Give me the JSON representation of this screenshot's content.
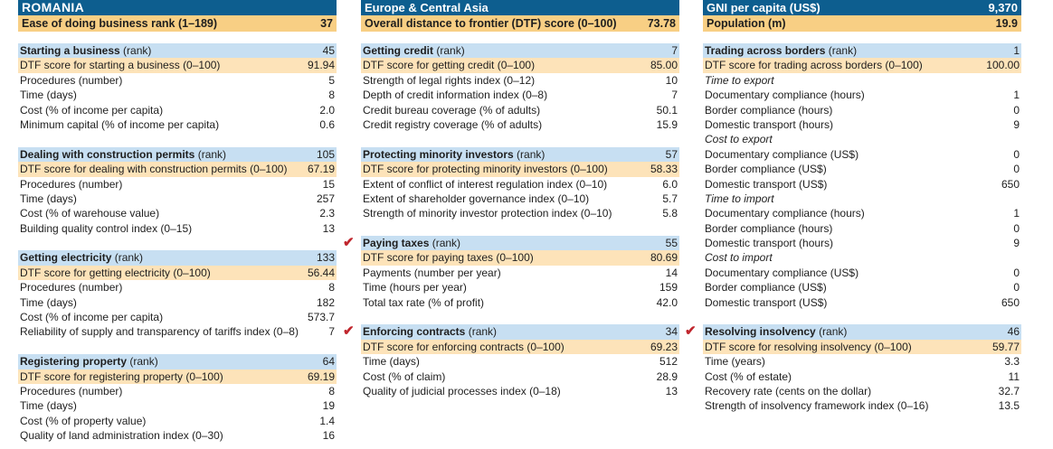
{
  "header": {
    "cells": [
      {
        "t1_label": "ROMANIA",
        "t1_value": "",
        "t2_label": "Ease of doing business rank (1–189)",
        "t2_value": "37"
      },
      {
        "t1_label": "Europe & Central Asia",
        "t1_value": "",
        "t2_label": "Overall distance to frontier (DTF) score (0–100)",
        "t2_value": "73.78"
      },
      {
        "t1_label": "GNI per capita (US$)",
        "t1_value": "9,370",
        "t2_label": "Population (m)",
        "t2_value": "19.9"
      }
    ]
  },
  "columns": [
    [
      {
        "title": "Starting a business",
        "rank_label": "(rank)",
        "rank": "45",
        "check": false,
        "rows": [
          {
            "label": "DTF score for starting a business (0–100)",
            "value": "91.94",
            "dtf": true
          },
          {
            "label": "Procedures (number)",
            "value": "5"
          },
          {
            "label": "Time (days)",
            "value": "8"
          },
          {
            "label": "Cost (% of income per capita)",
            "value": "2.0"
          },
          {
            "label": "Minimum capital (% of income per capita)",
            "value": "0.6"
          }
        ]
      },
      {
        "title": "Dealing with construction permits",
        "rank_label": "(rank)",
        "rank": "105",
        "check": false,
        "rows": [
          {
            "label": "DTF score for dealing with construction permits (0–100)",
            "value": "67.19",
            "dtf": true
          },
          {
            "label": "Procedures (number)",
            "value": "15"
          },
          {
            "label": "Time (days)",
            "value": "257"
          },
          {
            "label": "Cost (% of warehouse value)",
            "value": "2.3"
          },
          {
            "label": "Building quality control index (0–15)",
            "value": "13"
          }
        ]
      },
      {
        "title": "Getting electricity",
        "rank_label": "(rank)",
        "rank": "133",
        "check": false,
        "rows": [
          {
            "label": "DTF score for getting electricity (0–100)",
            "value": "56.44",
            "dtf": true
          },
          {
            "label": "Procedures (number)",
            "value": "8"
          },
          {
            "label": "Time (days)",
            "value": "182"
          },
          {
            "label": "Cost (% of income per capita)",
            "value": "573.7"
          },
          {
            "label": "Reliability of supply and transparency of tariffs index (0–8)",
            "value": "7"
          }
        ]
      },
      {
        "title": "Registering property",
        "rank_label": "(rank)",
        "rank": "64",
        "check": false,
        "rows": [
          {
            "label": "DTF score for registering property (0–100)",
            "value": "69.19",
            "dtf": true
          },
          {
            "label": "Procedures (number)",
            "value": "8"
          },
          {
            "label": "Time (days)",
            "value": "19"
          },
          {
            "label": "Cost (% of property value)",
            "value": "1.4"
          },
          {
            "label": "Quality of land administration index (0–30)",
            "value": "16"
          }
        ]
      }
    ],
    [
      {
        "title": "Getting credit",
        "rank_label": "(rank)",
        "rank": "7",
        "check": false,
        "rows": [
          {
            "label": "DTF score for getting credit (0–100)",
            "value": "85.00",
            "dtf": true
          },
          {
            "label": "Strength of legal rights index (0–12)",
            "value": "10"
          },
          {
            "label": "Depth of credit information index (0–8)",
            "value": "7"
          },
          {
            "label": "Credit bureau coverage (% of adults)",
            "value": "50.1"
          },
          {
            "label": "Credit registry coverage (% of adults)",
            "value": "15.9"
          }
        ]
      },
      {
        "title": "Protecting minority investors",
        "rank_label": "(rank)",
        "rank": "57",
        "check": false,
        "rows": [
          {
            "label": "DTF score for protecting minority investors (0–100)",
            "value": "58.33",
            "dtf": true
          },
          {
            "label": "Extent of conflict of interest regulation index (0–10)",
            "value": "6.0"
          },
          {
            "label": "Extent of shareholder governance index (0–10)",
            "value": "5.7"
          },
          {
            "label": "Strength of minority investor protection index (0–10)",
            "value": "5.8"
          }
        ]
      },
      {
        "title": "Paying taxes",
        "rank_label": "(rank)",
        "rank": "55",
        "check": true,
        "rows": [
          {
            "label": "DTF score for paying taxes (0–100)",
            "value": "80.69",
            "dtf": true
          },
          {
            "label": "Payments (number per year)",
            "value": "14"
          },
          {
            "label": "Time (hours per year)",
            "value": "159"
          },
          {
            "label": "Total tax rate (% of profit)",
            "value": "42.0"
          }
        ]
      },
      {
        "title": "Enforcing contracts",
        "rank_label": "(rank)",
        "rank": "34",
        "check": true,
        "rows": [
          {
            "label": "DTF score for enforcing contracts (0–100)",
            "value": "69.23",
            "dtf": true
          },
          {
            "label": "Time (days)",
            "value": "512"
          },
          {
            "label": "Cost (% of claim)",
            "value": "28.9"
          },
          {
            "label": "Quality of judicial processes index (0–18)",
            "value": "13"
          }
        ]
      }
    ],
    [
      {
        "title": "Trading across borders",
        "rank_label": "(rank)",
        "rank": "1",
        "check": false,
        "rows": [
          {
            "label": "DTF score for trading across borders (0–100)",
            "value": "100.00",
            "dtf": true
          },
          {
            "label": "Time to export",
            "value": "",
            "italic": true
          },
          {
            "label": "Documentary compliance (hours)",
            "value": "1"
          },
          {
            "label": "Border compliance (hours)",
            "value": "0"
          },
          {
            "label": "Domestic transport (hours)",
            "value": "9"
          },
          {
            "label": "Cost to export",
            "value": "",
            "italic": true
          },
          {
            "label": "Documentary compliance (US$)",
            "value": "0"
          },
          {
            "label": "Border compliance (US$)",
            "value": "0"
          },
          {
            "label": "Domestic transport (US$)",
            "value": "650"
          },
          {
            "label": "Time to import",
            "value": "",
            "italic": true
          },
          {
            "label": "Documentary compliance (hours)",
            "value": "1"
          },
          {
            "label": "Border compliance (hours)",
            "value": "0"
          },
          {
            "label": "Domestic transport (hours)",
            "value": "9"
          },
          {
            "label": "Cost to import",
            "value": "",
            "italic": true
          },
          {
            "label": "Documentary compliance (US$)",
            "value": "0"
          },
          {
            "label": "Border compliance (US$)",
            "value": "0"
          },
          {
            "label": "Domestic transport (US$)",
            "value": "650"
          }
        ]
      },
      {
        "title": "Resolving insolvency",
        "rank_label": "(rank)",
        "rank": "46",
        "check": true,
        "rows": [
          {
            "label": "DTF score for resolving insolvency (0–100)",
            "value": "59.77",
            "dtf": true
          },
          {
            "label": "Time (years)",
            "value": "3.3"
          },
          {
            "label": "Cost (% of estate)",
            "value": "11"
          },
          {
            "label": "Recovery rate (cents on the dollar)",
            "value": "32.7"
          },
          {
            "label": "Strength of insolvency framework index (0–16)",
            "value": "13.5"
          }
        ]
      }
    ]
  ],
  "colors": {
    "header_blue": "#0d5e8f",
    "header_orange": "#f8cf84",
    "section_blue": "#c7dff2",
    "dtf_orange": "#fde3b9",
    "check_red": "#c0262d"
  },
  "icons": {
    "check": "check-icon"
  }
}
